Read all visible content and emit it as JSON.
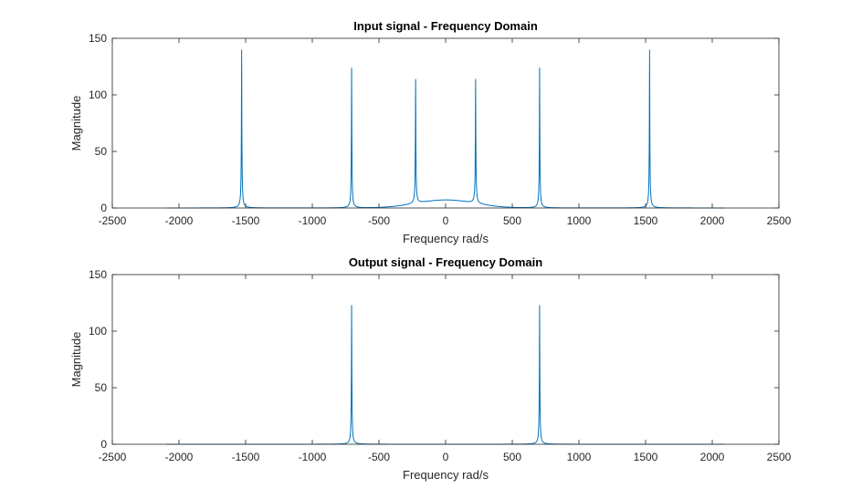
{
  "colors": {
    "series": "#0072BD",
    "axis": "#262626",
    "background": "#ffffff"
  },
  "chart_data": [
    {
      "type": "line",
      "title": "Input signal - Frequency Domain",
      "xlabel": "Frequency rad/s",
      "ylabel": "Magnitude",
      "xlim": [
        -2500,
        2500
      ],
      "ylim": [
        0,
        150
      ],
      "xticks": [
        -2500,
        -2000,
        -1500,
        -1000,
        -500,
        0,
        500,
        1000,
        1500,
        2000,
        2500
      ],
      "yticks": [
        0,
        50,
        100,
        150
      ],
      "x_tick_labels": [
        "-2500",
        "-2000",
        "-1500",
        "-1000",
        "-500",
        "0",
        "500",
        "1000",
        "1500",
        "2000",
        "2500"
      ],
      "y_tick_labels": [
        "0",
        "50",
        "100",
        "150"
      ],
      "grid": false,
      "x_range": [
        -2095,
        2095
      ],
      "peaks": [
        {
          "x": -1530,
          "y": 140
        },
        {
          "x": -705,
          "y": 124
        },
        {
          "x": -225,
          "y": 114
        },
        {
          "x": 225,
          "y": 114
        },
        {
          "x": 705,
          "y": 124
        },
        {
          "x": 1530,
          "y": 140
        }
      ]
    },
    {
      "type": "line",
      "title": "Output signal - Frequency Domain",
      "xlabel": "Frequency rad/s",
      "ylabel": "Magnitude",
      "xlim": [
        -2500,
        2500
      ],
      "ylim": [
        0,
        150
      ],
      "xticks": [
        -2500,
        -2000,
        -1500,
        -1000,
        -500,
        0,
        500,
        1000,
        1500,
        2000,
        2500
      ],
      "yticks": [
        0,
        50,
        100,
        150
      ],
      "x_tick_labels": [
        "-2500",
        "-2000",
        "-1500",
        "-1000",
        "-500",
        "0",
        "500",
        "1000",
        "1500",
        "2000",
        "2500"
      ],
      "y_tick_labels": [
        "0",
        "50",
        "100",
        "150"
      ],
      "grid": false,
      "x_range": [
        -2095,
        2095
      ],
      "peaks": [
        {
          "x": -705,
          "y": 123
        },
        {
          "x": 705,
          "y": 123
        }
      ]
    }
  ]
}
